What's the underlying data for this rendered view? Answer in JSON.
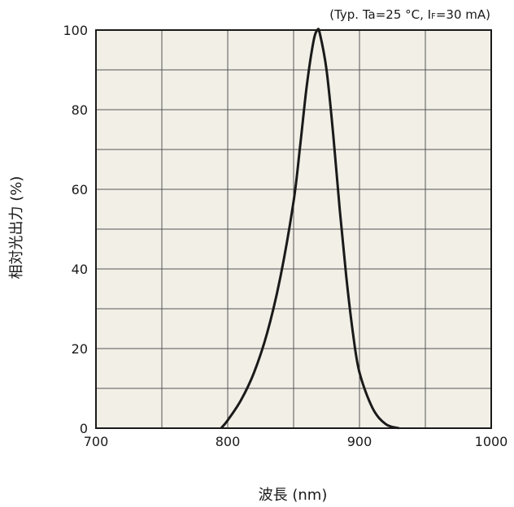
{
  "chart_data": {
    "type": "line",
    "title": "",
    "condition": {
      "prefix": "(Typ. Ta=25 °C, I",
      "sub": "F",
      "suffix": "=30 mA)"
    },
    "xlabel": "波長 (nm)",
    "ylabel": "相対光出力 (%)",
    "xlim": [
      700,
      1000
    ],
    "ylim": [
      0,
      100
    ],
    "xticks": [
      700,
      800,
      900,
      1000
    ],
    "yticks": [
      0,
      20,
      40,
      60,
      80,
      100
    ],
    "x_minor_step": 50,
    "y_minor_step": 10,
    "grid": true,
    "legend": "none",
    "plot_background": "#f1efe6",
    "line_color": "#1a1a1a",
    "series": [
      {
        "x": [
          795,
          800,
          810,
          820,
          830,
          840,
          850,
          855,
          860,
          865,
          868,
          870,
          875,
          880,
          885,
          890,
          895,
          900,
          910,
          920,
          930
        ],
        "values": [
          0,
          2,
          7,
          14,
          24,
          38,
          57,
          71,
          86,
          97,
          100,
          99,
          90,
          74,
          55,
          38,
          24,
          14,
          5,
          1,
          0
        ]
      }
    ]
  }
}
